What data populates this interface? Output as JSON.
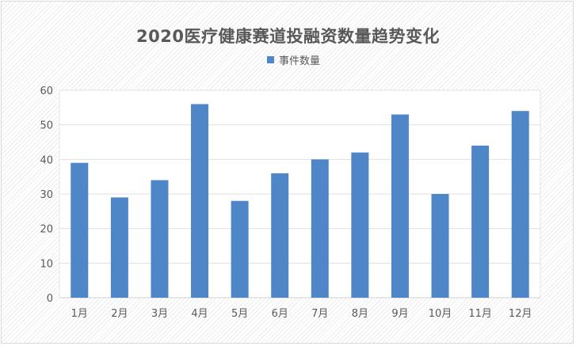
{
  "chart_data": {
    "type": "bar",
    "title": "2020医疗健康赛道投融资数量趋势变化",
    "categories": [
      "1月",
      "2月",
      "3月",
      "4月",
      "5月",
      "6月",
      "7月",
      "8月",
      "9月",
      "10月",
      "11月",
      "12月"
    ],
    "series": [
      {
        "name": "事件数量",
        "values": [
          39,
          29,
          34,
          56,
          28,
          36,
          40,
          42,
          53,
          30,
          44,
          54
        ],
        "color": "#4e86c8"
      }
    ],
    "ylim": [
      0,
      60
    ],
    "yticks": [
      0,
      10,
      20,
      30,
      40,
      50,
      60
    ],
    "grid": true,
    "legend_position": "top-center",
    "xlabel": "",
    "ylabel": ""
  }
}
